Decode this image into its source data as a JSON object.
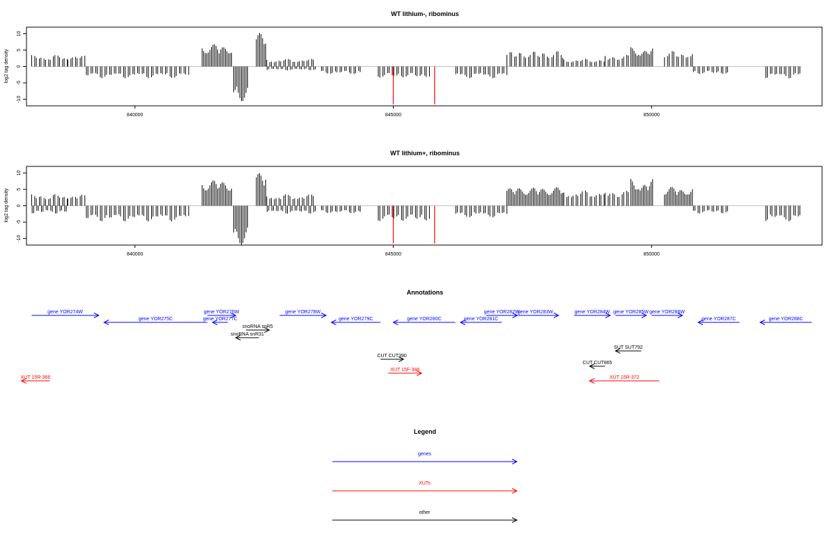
{
  "colors": {
    "genes": "#0000ff",
    "xuts": "#ff0000",
    "other": "#000000",
    "axis": "#000000",
    "highlight": "#ff0000"
  },
  "chart_data": [
    {
      "type": "bar",
      "title": "WT lithium-, ribominus",
      "xlabel": "",
      "ylabel": "log2 tag density",
      "xlim": [
        837900,
        853300
      ],
      "ylim": [
        -12,
        12
      ],
      "xticks": [
        840000,
        845000,
        850000
      ],
      "xtick_labels": [
        "840000",
        "845000",
        "850000"
      ],
      "yticks": [
        -10,
        -5,
        0,
        5,
        10
      ],
      "ytick_labels": [
        "-10",
        "-5",
        "0",
        "5",
        "10"
      ],
      "profile": [
        {
          "from": 838000,
          "to": 838700,
          "sense": 3,
          "anti": 0
        },
        {
          "from": 838700,
          "to": 839050,
          "sense": 3,
          "anti": 0
        },
        {
          "from": 839050,
          "to": 841050,
          "sense": 0,
          "anti": -3
        },
        {
          "from": 841300,
          "to": 841900,
          "sense": 6,
          "anti": 0
        },
        {
          "from": 841900,
          "to": 842200,
          "sense": 0,
          "anti": -9
        },
        {
          "from": 842350,
          "to": 842550,
          "sense": 9,
          "anti": 0
        },
        {
          "from": 842550,
          "to": 843500,
          "sense": 2,
          "anti": -1
        },
        {
          "from": 843600,
          "to": 844400,
          "sense": 0,
          "anti": -2
        },
        {
          "from": 844700,
          "to": 845700,
          "sense": 0,
          "anti": -3
        },
        {
          "from": 846200,
          "to": 847200,
          "sense": 0,
          "anti": -3
        },
        {
          "from": 847200,
          "to": 848300,
          "sense": 4,
          "anti": 0
        },
        {
          "from": 848300,
          "to": 849100,
          "sense": 2,
          "anti": 0
        },
        {
          "from": 849100,
          "to": 849600,
          "sense": 3,
          "anti": 0
        },
        {
          "from": 849600,
          "to": 850050,
          "sense": 5,
          "anti": 0
        },
        {
          "from": 850250,
          "to": 850800,
          "sense": 4,
          "anti": 0
        },
        {
          "from": 850800,
          "to": 851500,
          "sense": 0,
          "anti": -2
        },
        {
          "from": 852200,
          "to": 852900,
          "sense": 0,
          "anti": -3
        }
      ],
      "highlights": [
        {
          "x": 845000,
          "y": -11.5
        },
        {
          "x": 845800,
          "y": -11.5
        }
      ]
    },
    {
      "type": "bar",
      "title": "WT lithium+, ribominus",
      "xlabel": "",
      "ylabel": "log2 tag density",
      "xlim": [
        837900,
        853300
      ],
      "ylim": [
        -12,
        12
      ],
      "xticks": [
        840000,
        845000,
        850000
      ],
      "xtick_labels": [
        "840000",
        "845000",
        "850000"
      ],
      "yticks": [
        -10,
        -5,
        0,
        5,
        10
      ],
      "ytick_labels": [
        "-10",
        "-5",
        "0",
        "5",
        "10"
      ],
      "profile": [
        {
          "from": 838000,
          "to": 838700,
          "sense": 3,
          "anti": -2
        },
        {
          "from": 838700,
          "to": 839050,
          "sense": 3,
          "anti": 0
        },
        {
          "from": 839050,
          "to": 841050,
          "sense": 0,
          "anti": -4
        },
        {
          "from": 841300,
          "to": 841900,
          "sense": 7,
          "anti": 0
        },
        {
          "from": 841900,
          "to": 842200,
          "sense": 0,
          "anti": -10
        },
        {
          "from": 842350,
          "to": 842550,
          "sense": 9,
          "anti": 0
        },
        {
          "from": 842550,
          "to": 843500,
          "sense": 3,
          "anti": -2
        },
        {
          "from": 843600,
          "to": 844400,
          "sense": 0,
          "anti": -2
        },
        {
          "from": 844700,
          "to": 845700,
          "sense": 0,
          "anti": -4
        },
        {
          "from": 846200,
          "to": 847200,
          "sense": 0,
          "anti": -3
        },
        {
          "from": 847200,
          "to": 848300,
          "sense": 5,
          "anti": 0
        },
        {
          "from": 848300,
          "to": 849100,
          "sense": 4,
          "anti": 0
        },
        {
          "from": 849100,
          "to": 849600,
          "sense": 4,
          "anti": 0
        },
        {
          "from": 849600,
          "to": 850050,
          "sense": 7,
          "anti": 0
        },
        {
          "from": 850250,
          "to": 850800,
          "sense": 5,
          "anti": 0
        },
        {
          "from": 850800,
          "to": 851500,
          "sense": 0,
          "anti": -2
        },
        {
          "from": 852200,
          "to": 852900,
          "sense": 0,
          "anti": -4
        }
      ],
      "highlights": [
        {
          "x": 845000,
          "y": -11.5
        },
        {
          "x": 845800,
          "y": -11.5
        }
      ]
    }
  ],
  "annotations": {
    "title": "Annotations",
    "features": [
      {
        "label": "gene YOR274W",
        "start": 838000,
        "end": 839300,
        "strand": "+",
        "row": 0,
        "kind": "genes"
      },
      {
        "label": "gene YOR275C",
        "start": 839400,
        "end": 841400,
        "strand": "-",
        "row": 1,
        "kind": "genes"
      },
      {
        "label": "gene YOR276W",
        "start": 841400,
        "end": 841950,
        "strand": "+",
        "row": 0,
        "kind": "genes"
      },
      {
        "label": "gene YOR277C",
        "start": 841500,
        "end": 841800,
        "strand": "-",
        "row": 1,
        "kind": "genes"
      },
      {
        "label": "gene YOR278W",
        "start": 842800,
        "end": 843700,
        "strand": "+",
        "row": 0,
        "kind": "genes"
      },
      {
        "label": "gene YOR279C",
        "start": 843800,
        "end": 844750,
        "strand": "-",
        "row": 1,
        "kind": "genes"
      },
      {
        "label": "gene YOR280C",
        "start": 845000,
        "end": 846200,
        "strand": "-",
        "row": 1,
        "kind": "genes"
      },
      {
        "label": "gene YOR281C",
        "start": 846300,
        "end": 847100,
        "strand": "-",
        "row": 1,
        "kind": "genes"
      },
      {
        "label": "gene YOR282W",
        "start": 846800,
        "end": 847400,
        "strand": "+",
        "row": 0,
        "kind": "genes"
      },
      {
        "label": "gene YOR283W",
        "start": 847300,
        "end": 848200,
        "strand": "+",
        "row": 0,
        "kind": "genes"
      },
      {
        "label": "gene YOR284W",
        "start": 848500,
        "end": 849200,
        "strand": "+",
        "row": 0,
        "kind": "genes"
      },
      {
        "label": "gene YOR285W",
        "start": 849300,
        "end": 849900,
        "strand": "+",
        "row": 0,
        "kind": "genes"
      },
      {
        "label": "gene YOR286W",
        "start": 850000,
        "end": 850600,
        "strand": "+",
        "row": 0,
        "kind": "genes"
      },
      {
        "label": "gene YOR287C",
        "start": 850900,
        "end": 851700,
        "strand": "-",
        "row": 1,
        "kind": "genes"
      },
      {
        "label": "gene YOR288C",
        "start": 852100,
        "end": 853100,
        "strand": "-",
        "row": 1,
        "kind": "genes"
      },
      {
        "label": "snoRNA snR5",
        "start": 842150,
        "end": 842600,
        "strand": "+",
        "row": 2,
        "kind": "other"
      },
      {
        "label": "snoRNA snR31",
        "start": 841950,
        "end": 842400,
        "strand": "-",
        "row": 3,
        "kind": "other"
      },
      {
        "label": "CUT CUT390",
        "start": 844750,
        "end": 845200,
        "strand": "+",
        "row": 5,
        "kind": "other"
      },
      {
        "label": "SUT SUT792",
        "start": 849300,
        "end": 849800,
        "strand": "-",
        "row": 4,
        "kind": "other"
      },
      {
        "label": "CUT CUT865",
        "start": 848800,
        "end": 849100,
        "strand": "-",
        "row": 6,
        "kind": "other"
      },
      {
        "label": "XUT 15F-388",
        "start": 844900,
        "end": 845550,
        "strand": "+",
        "row": 7,
        "kind": "xuts"
      },
      {
        "label": "XUT 15R-366",
        "start": 837800,
        "end": 838350,
        "strand": "-",
        "row": 8,
        "kind": "xuts"
      },
      {
        "label": "XUT 15R-372",
        "start": 848800,
        "end": 850150,
        "strand": "-",
        "row": 8,
        "kind": "xuts"
      }
    ]
  },
  "legend": {
    "title": "Legend",
    "items": [
      {
        "label": "genes",
        "kind": "genes"
      },
      {
        "label": "XUTs",
        "kind": "xuts"
      },
      {
        "label": "other",
        "kind": "other"
      }
    ]
  }
}
